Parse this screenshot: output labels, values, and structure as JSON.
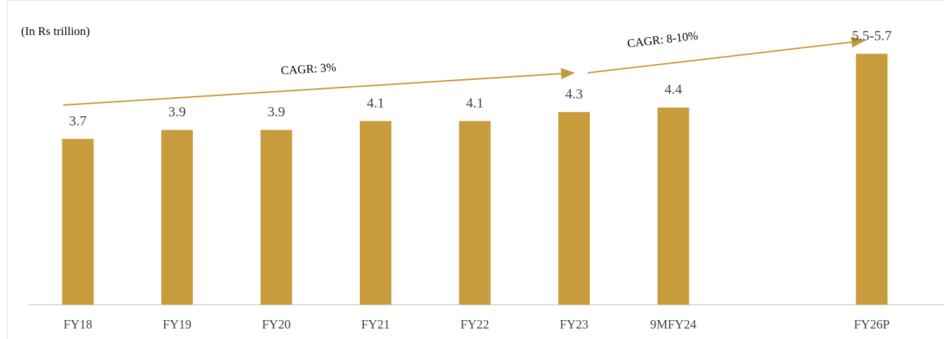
{
  "chart_data": {
    "type": "bar",
    "subtitle": "(In Rs trillion)",
    "categories": [
      "FY18",
      "FY19",
      "FY20",
      "FY21",
      "FY22",
      "FY23",
      "9MFY24",
      null,
      "FY26P"
    ],
    "values": [
      3.7,
      3.9,
      3.9,
      4.1,
      4.1,
      4.3,
      4.4,
      null,
      5.6
    ],
    "value_labels": [
      "3.7",
      "3.9",
      "3.9",
      "4.1",
      "4.1",
      "4.3",
      "4.4",
      null,
      "5.5-5.7"
    ],
    "color": "#c89b3c",
    "ylim": [
      0,
      6.8
    ],
    "annotations": [
      "CAGR: 3%",
      "CAGR: 8-10%"
    ]
  }
}
